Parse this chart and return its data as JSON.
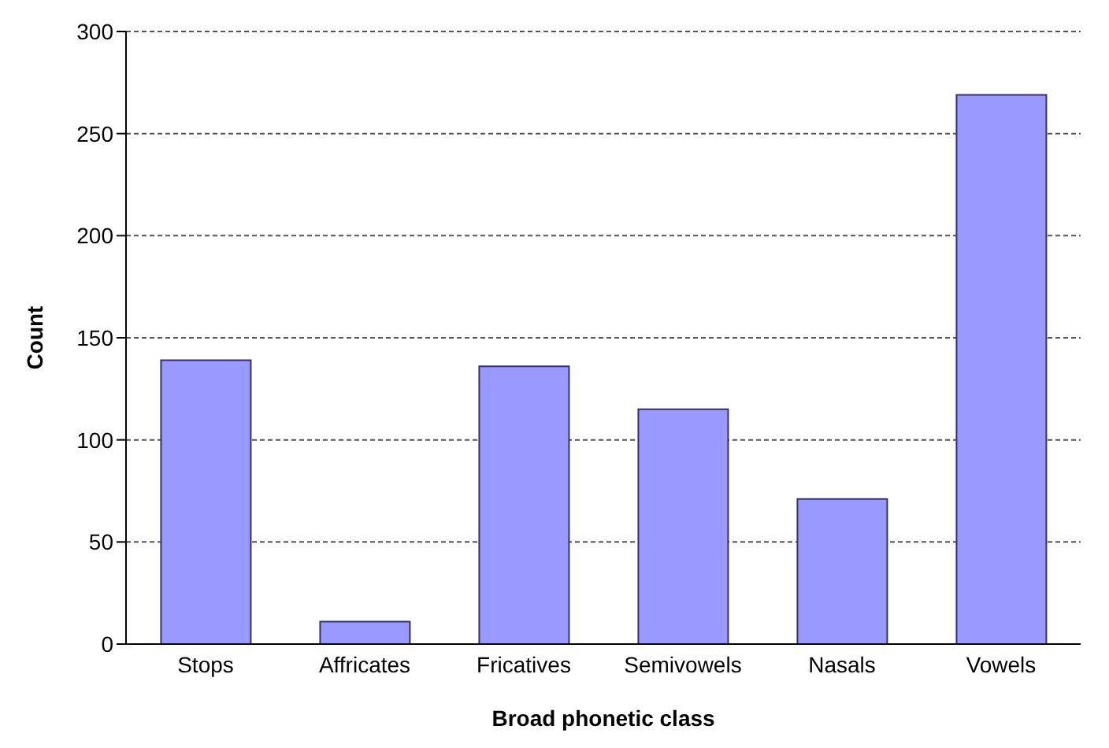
{
  "chart_data": {
    "type": "bar",
    "xlabel": "Broad phonetic class",
    "ylabel": "Count",
    "categories": [
      "Stops",
      "Affricates",
      "Fricatives",
      "Semivowels",
      "Nasals",
      "Vowels"
    ],
    "values": [
      139,
      11,
      136,
      115,
      71,
      269
    ],
    "color": "#9999ff",
    "ylim": [
      0,
      300
    ],
    "yticks": [
      0,
      50,
      100,
      150,
      200,
      250,
      300
    ],
    "grid": "y"
  }
}
